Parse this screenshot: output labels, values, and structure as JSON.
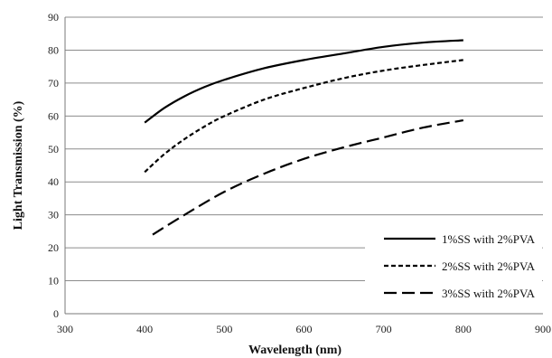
{
  "chart_data": {
    "type": "line",
    "xlabel": "Wavelength (nm)",
    "ylabel": "Light Transmission (%)",
    "xlim": [
      300,
      900
    ],
    "ylim": [
      0,
      90
    ],
    "xticks": [
      300,
      400,
      500,
      600,
      700,
      800,
      900
    ],
    "yticks": [
      0,
      10,
      20,
      30,
      40,
      50,
      60,
      70,
      80,
      90
    ],
    "grid": "horizontal",
    "legend_position": "bottom-right",
    "series": [
      {
        "name": "1%SS with 2%PVA",
        "dash": "solid",
        "x": [
          400,
          425,
          450,
          475,
          500,
          550,
          600,
          650,
          700,
          750,
          800
        ],
        "y": [
          58,
          62.5,
          66,
          68.8,
          71,
          74.5,
          77,
          79,
          81,
          82.3,
          83
        ]
      },
      {
        "name": "2%SS with 2%PVA",
        "dash": "short-dash",
        "x": [
          400,
          425,
          450,
          475,
          500,
          550,
          600,
          650,
          700,
          750,
          800
        ],
        "y": [
          43,
          48.5,
          53,
          56.8,
          60,
          65,
          68.5,
          71.5,
          73.8,
          75.5,
          77
        ]
      },
      {
        "name": "3%SS with 2%PVA",
        "dash": "long-dash",
        "x": [
          410,
          450,
          500,
          550,
          600,
          650,
          700,
          750,
          800
        ],
        "y": [
          24,
          30,
          37,
          42.5,
          47,
          50.5,
          53.5,
          56.5,
          58.7
        ]
      }
    ]
  }
}
